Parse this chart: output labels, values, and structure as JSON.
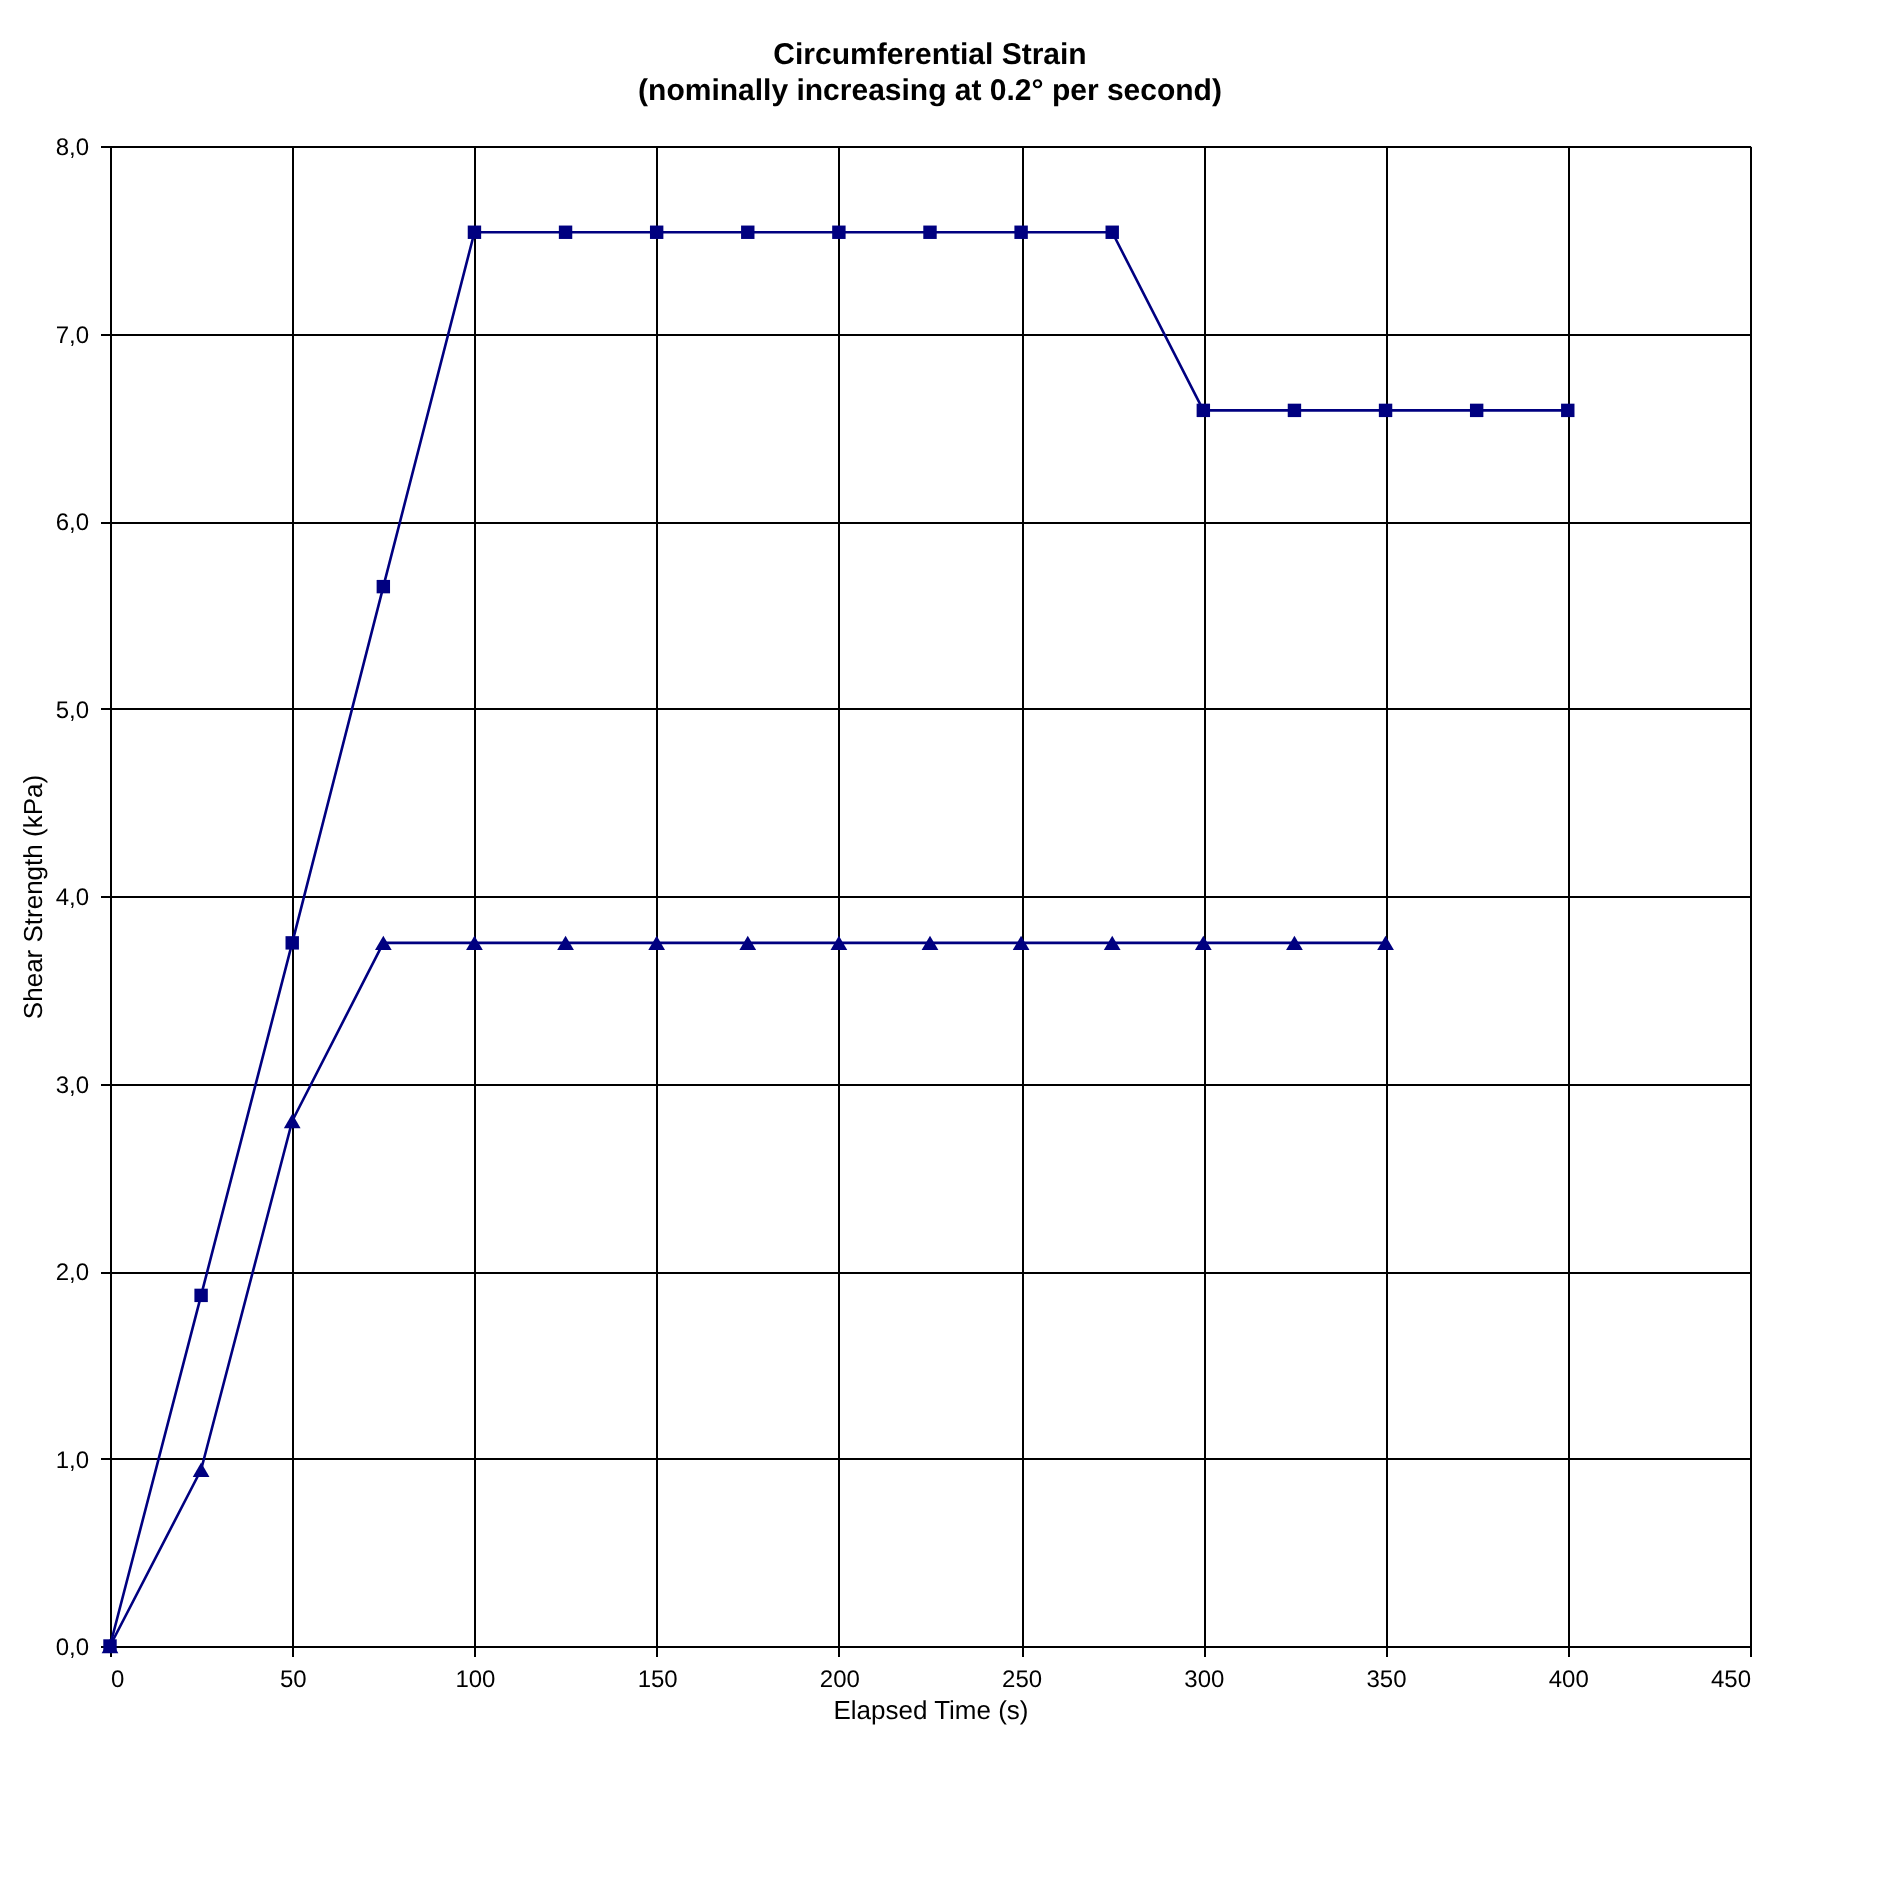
{
  "chart_data": {
    "type": "line",
    "title": "Circumferential Strain",
    "subtitle": "(nominally increasing at 0.2° per second)",
    "xlabel": "Elapsed Time (s)",
    "ylabel": "Shear Strength  (kPa)",
    "xlim": [
      0,
      450
    ],
    "xticks": [
      0,
      50,
      100,
      150,
      200,
      250,
      300,
      350,
      400,
      450
    ],
    "ylim": [
      0,
      8
    ],
    "yticks": [
      {
        "value": 0,
        "label": "0,0"
      },
      {
        "value": 1,
        "label": "1,0"
      },
      {
        "value": 2,
        "label": "2,0"
      },
      {
        "value": 3,
        "label": "3,0"
      },
      {
        "value": 4,
        "label": "4,0"
      },
      {
        "value": 5,
        "label": "5,0"
      },
      {
        "value": 6,
        "label": "6,0"
      },
      {
        "value": 7,
        "label": "7,0"
      },
      {
        "value": 8,
        "label": "8,0"
      }
    ],
    "grid": true,
    "legend": false,
    "line_style": "solid",
    "series": [
      {
        "color": "#000080",
        "marker": "square",
        "x": [
          0,
          25,
          50,
          75,
          100,
          125,
          150,
          175,
          200,
          225,
          250,
          275,
          300,
          325,
          350,
          375,
          400
        ],
        "values": [
          0,
          1.87,
          3.75,
          5.65,
          7.54,
          7.54,
          7.54,
          7.54,
          7.54,
          7.54,
          7.54,
          7.54,
          6.59,
          6.59,
          6.59,
          6.59,
          6.59
        ]
      },
      {
        "color": "#000080",
        "marker": "triangle",
        "x": [
          0,
          25,
          50,
          75,
          100,
          125,
          150,
          175,
          200,
          225,
          250,
          275,
          300,
          325,
          350
        ],
        "values": [
          0,
          0.94,
          2.8,
          3.75,
          3.75,
          3.75,
          3.75,
          3.75,
          3.75,
          3.75,
          3.75,
          3.75,
          3.75,
          3.75,
          3.75
        ]
      }
    ]
  }
}
